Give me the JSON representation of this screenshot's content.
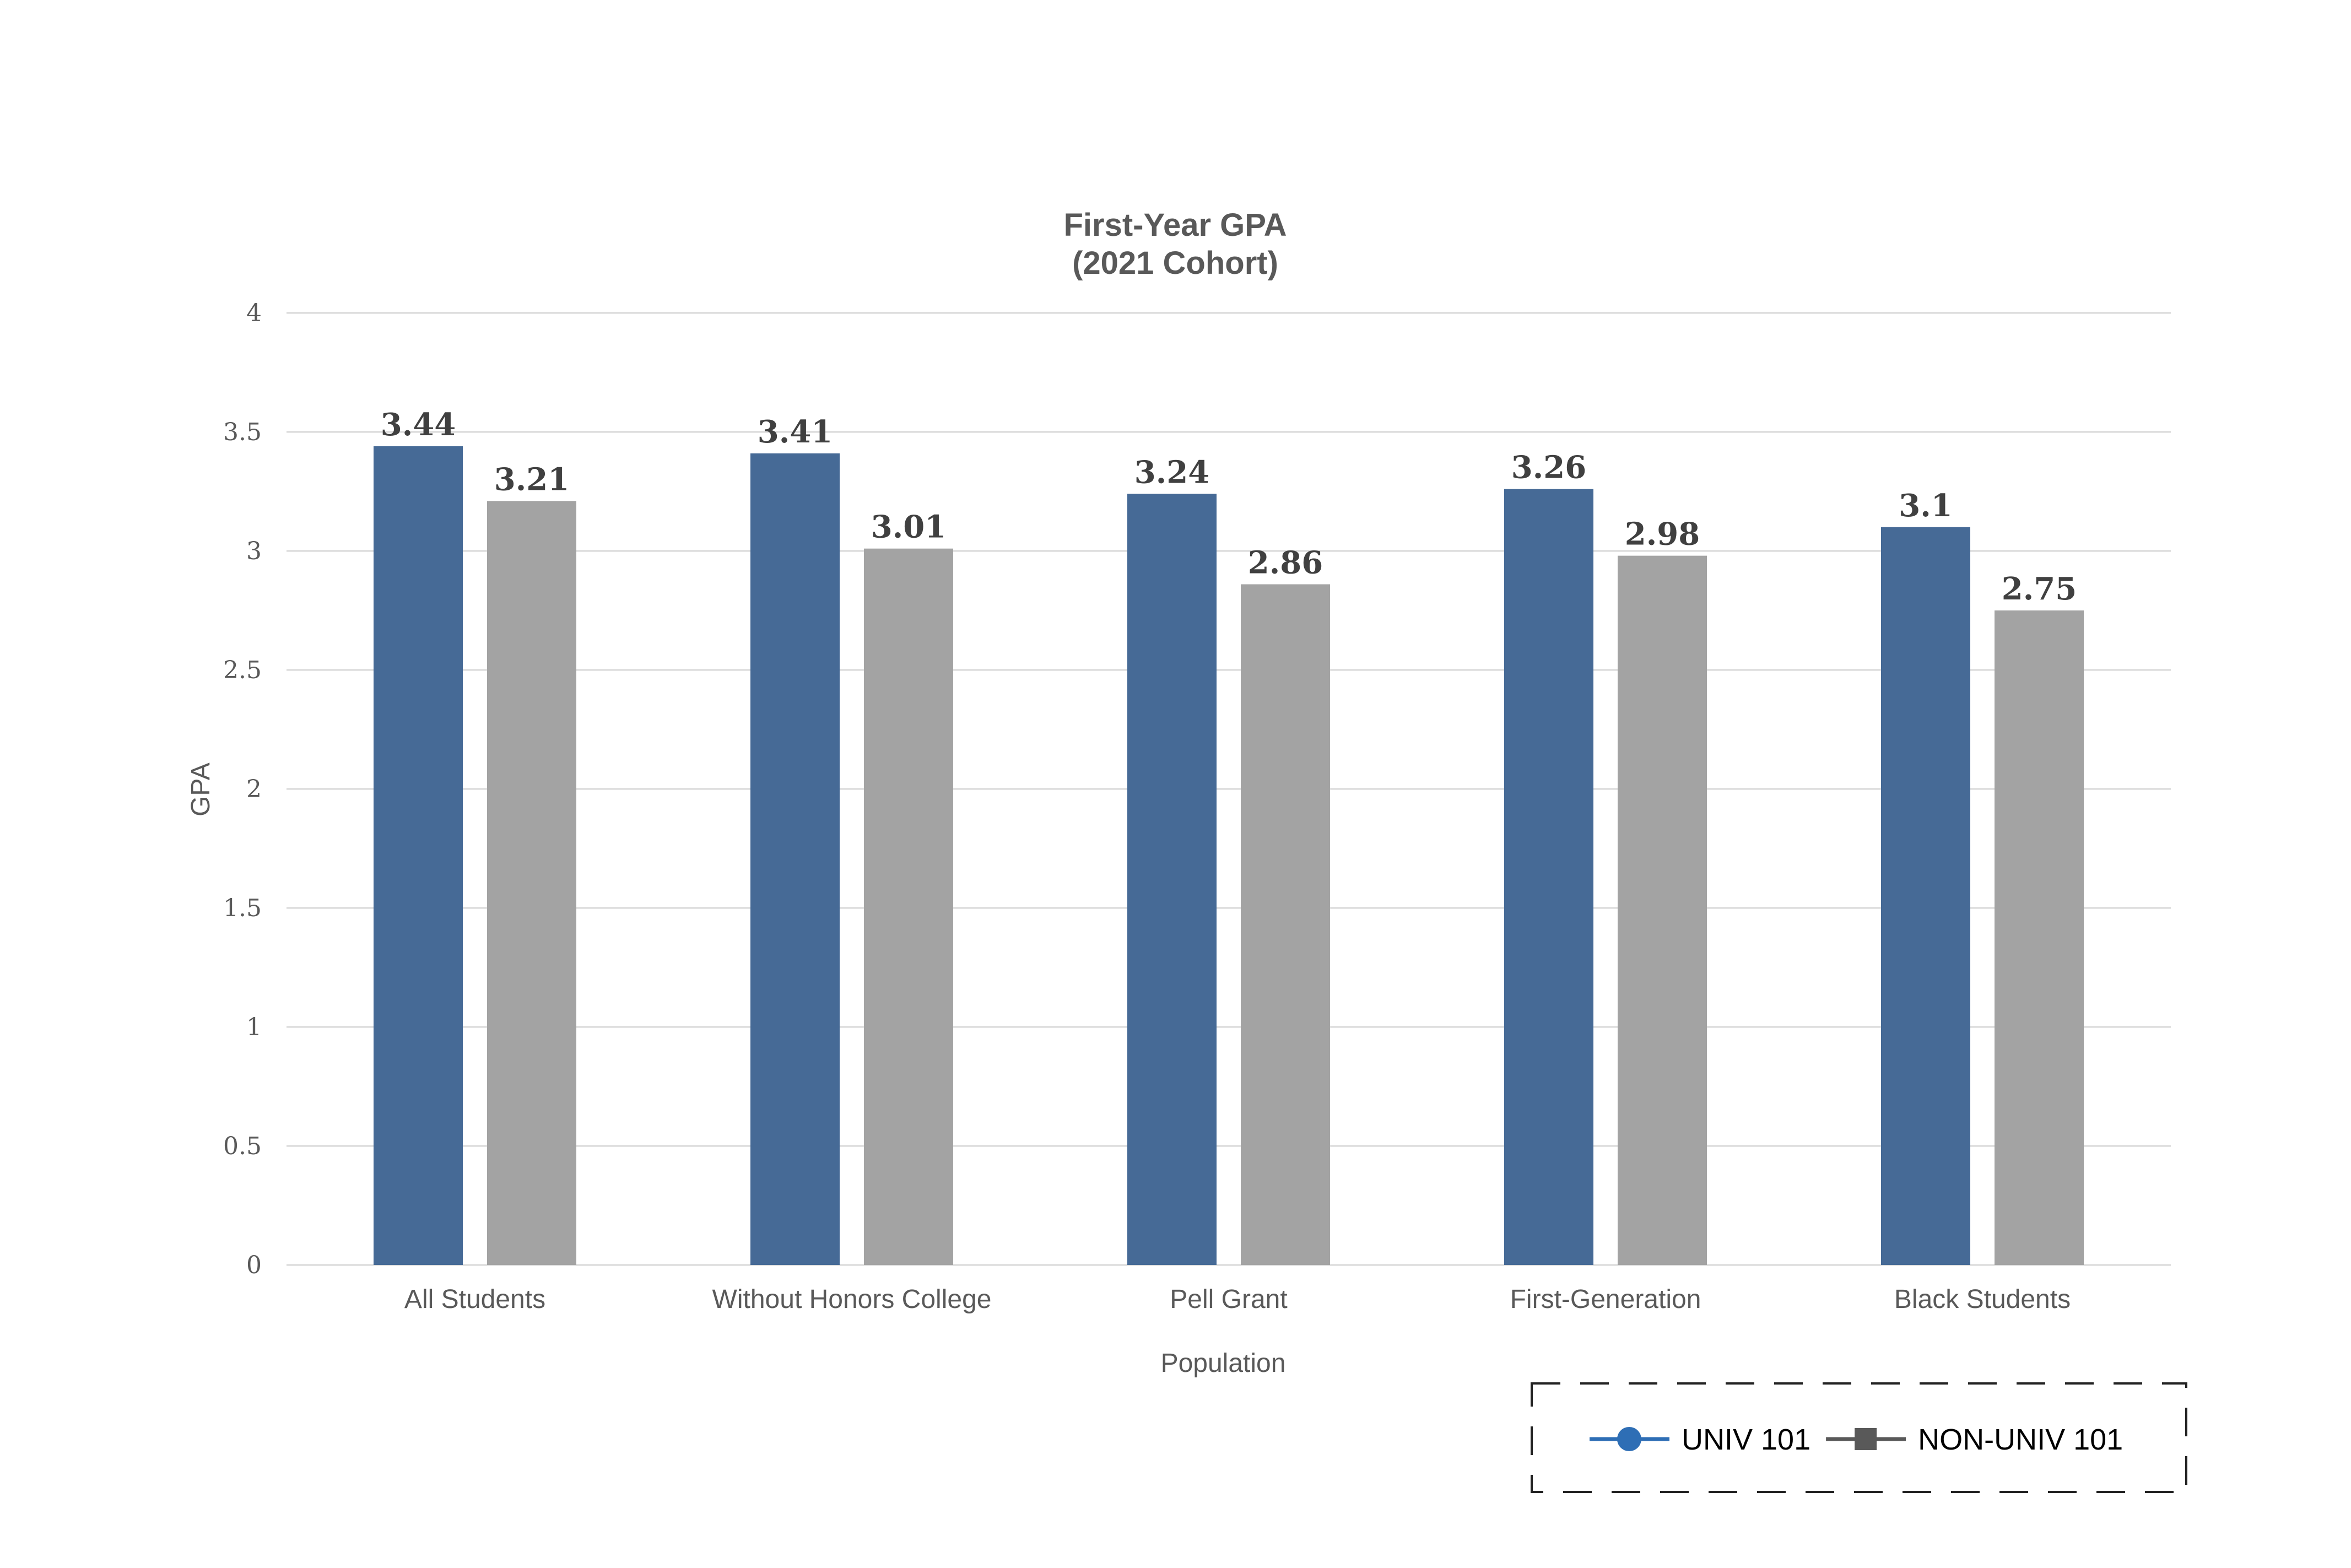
{
  "chart_data": {
    "type": "bar",
    "title": "First-Year GPA",
    "subtitle": "(2021 Cohort)",
    "xlabel": "Population",
    "ylabel": "GPA",
    "ylim": [
      0,
      4
    ],
    "yticks": [
      "0",
      "0.5",
      "1",
      "1.5",
      "2",
      "2.5",
      "3",
      "3.5",
      "4"
    ],
    "grid": true,
    "legend_position": "bottom-right",
    "categories": [
      "All Students",
      "Without Honors College",
      "Pell Grant",
      "First-Generation",
      "Black Students"
    ],
    "series": [
      {
        "name": "UNIV 101",
        "color": "#466A96",
        "legend_color": "#2E6EB5",
        "legend_marker": "circle",
        "values": [
          3.44,
          3.41,
          3.24,
          3.26,
          3.1
        ],
        "labels": [
          "3.44",
          "3.41",
          "3.24",
          "3.26",
          "3.1"
        ]
      },
      {
        "name": "NON-UNIV 101",
        "color": "#A3A3A3",
        "legend_color": "#595959",
        "legend_marker": "square",
        "values": [
          3.21,
          3.01,
          2.86,
          2.98,
          2.75
        ],
        "labels": [
          "3.21",
          "3.01",
          "2.86",
          "2.98",
          "2.75"
        ]
      }
    ]
  }
}
